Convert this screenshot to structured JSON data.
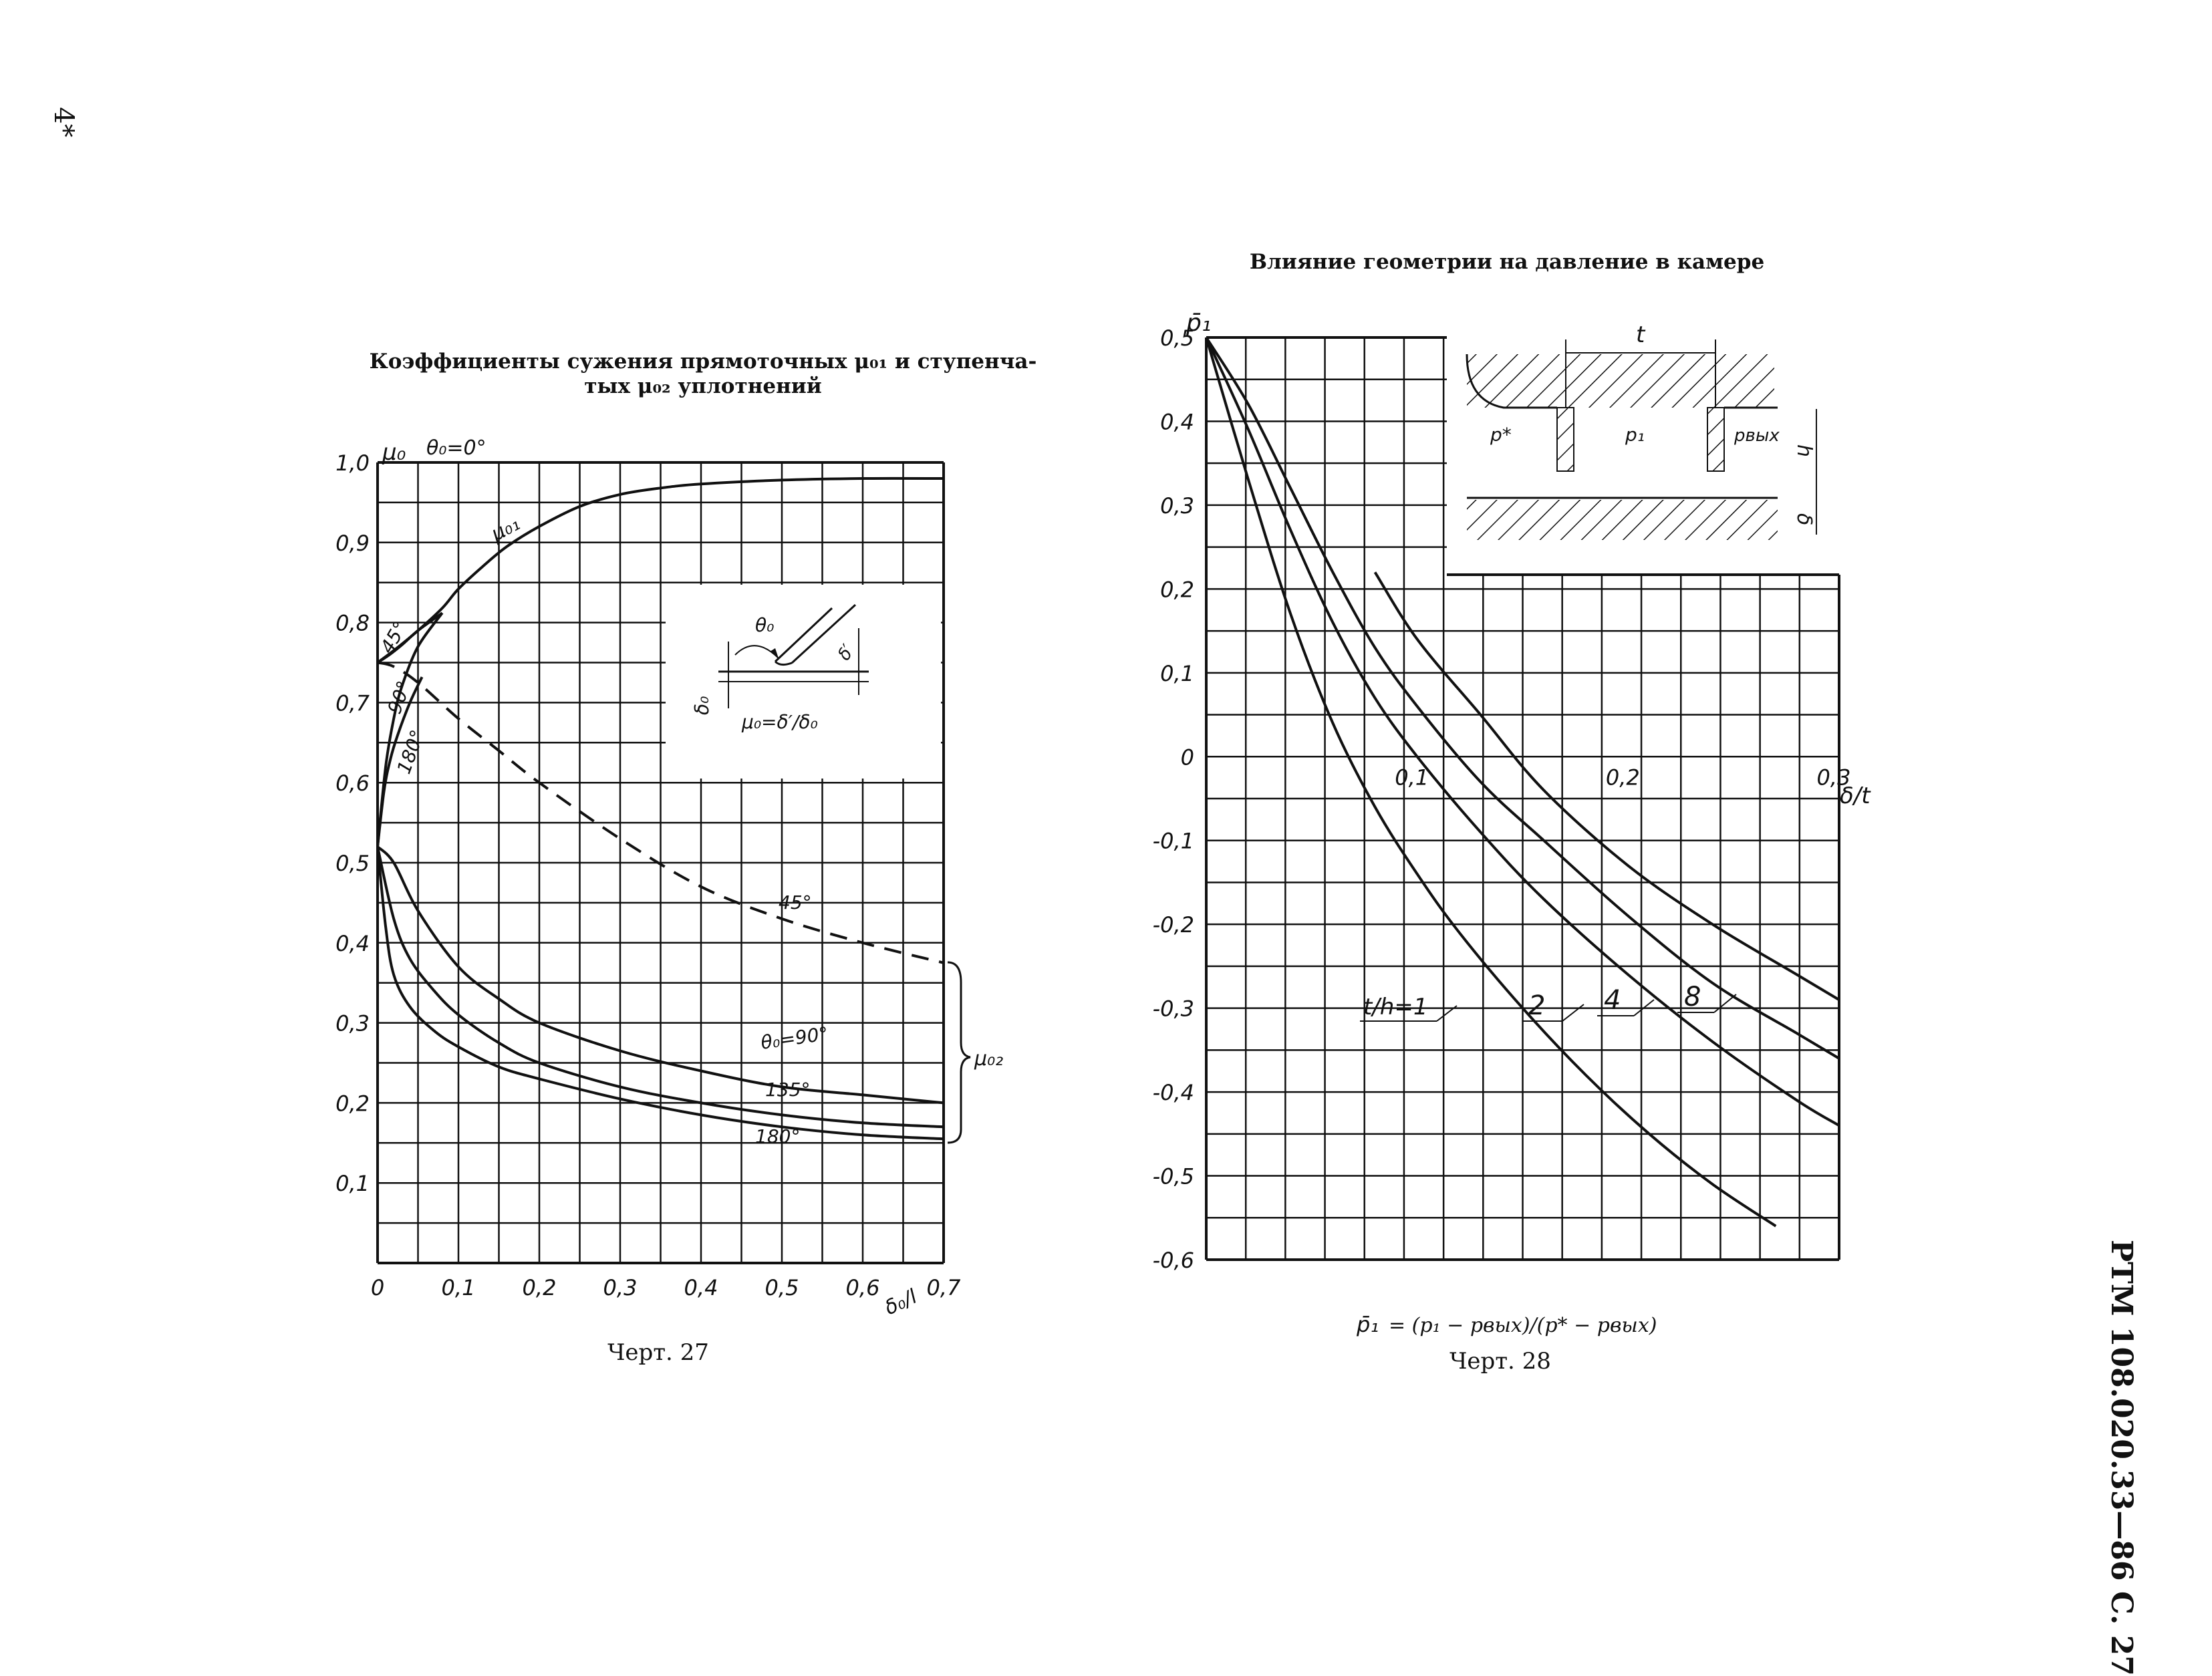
{
  "page": {
    "corner_mark": "4*",
    "side_label": "РТМ 108.020.33—86 С. 27"
  },
  "chart_data": [
    {
      "type": "line",
      "title_line1": "Коэффициенты  сужения  прямоточных  μ₀₁  и  ступенча-",
      "title_line2": "тых  μ₀₂  уплотнений",
      "ylabel": "μ₀",
      "ylabel_extra": "θ₀=0°",
      "xlabel": "δ₀/l",
      "xlim": [
        0,
        0.7
      ],
      "ylim": [
        0,
        1.0
      ],
      "x_ticks": [
        "0",
        "0,1",
        "0,2",
        "0,3",
        "0,4",
        "0,5",
        "0,6",
        "0,7"
      ],
      "y_ticks": [
        "0,1",
        "0,2",
        "0,3",
        "0,4",
        "0,5",
        "0,6",
        "0,7",
        "0,8",
        "0,9",
        "1,0"
      ],
      "grid": true,
      "series": [
        {
          "name": "μ₀₁",
          "dashed": false,
          "x": [
            0,
            0.02,
            0.05,
            0.08,
            0.1,
            0.13,
            0.16,
            0.2,
            0.25,
            0.3,
            0.35,
            0.4,
            0.5,
            0.6,
            0.7
          ],
          "y": [
            0.75,
            0.765,
            0.79,
            0.818,
            0.842,
            0.87,
            0.895,
            0.92,
            0.945,
            0.96,
            0.968,
            0.973,
            0.978,
            0.98,
            0.98
          ]
        },
        {
          "name": "45°",
          "dashed": false,
          "x": [
            0,
            0.015,
            0.03,
            0.05,
            0.08
          ],
          "y": [
            0.75,
            0.76,
            0.772,
            0.79,
            0.812
          ]
        },
        {
          "name": "90°",
          "dashed": false,
          "x": [
            0,
            0.01,
            0.02,
            0.03,
            0.05,
            0.08
          ],
          "y": [
            0.52,
            0.62,
            0.68,
            0.72,
            0.77,
            0.812
          ]
        },
        {
          "name": "180°",
          "dashed": false,
          "x": [
            0,
            0.008,
            0.016,
            0.025,
            0.04,
            0.055
          ],
          "y": [
            0.52,
            0.59,
            0.63,
            0.66,
            0.7,
            0.732
          ]
        },
        {
          "name": "45°",
          "dashed": true,
          "x": [
            0,
            0.02,
            0.05,
            0.1,
            0.15,
            0.2,
            0.3,
            0.4,
            0.5,
            0.6,
            0.7
          ],
          "y": [
            0.75,
            0.745,
            0.725,
            0.68,
            0.64,
            0.6,
            0.53,
            0.47,
            0.43,
            0.4,
            0.375
          ]
        },
        {
          "name": "θ₀=90°",
          "dashed": false,
          "x": [
            0,
            0.02,
            0.05,
            0.1,
            0.15,
            0.2,
            0.3,
            0.4,
            0.5,
            0.6,
            0.7
          ],
          "y": [
            0.52,
            0.5,
            0.44,
            0.37,
            0.33,
            0.3,
            0.265,
            0.24,
            0.22,
            0.21,
            0.2
          ]
        },
        {
          "name": "135°",
          "dashed": false,
          "x": [
            0,
            0.02,
            0.04,
            0.07,
            0.1,
            0.15,
            0.2,
            0.3,
            0.4,
            0.5,
            0.6,
            0.7
          ],
          "y": [
            0.52,
            0.43,
            0.38,
            0.34,
            0.31,
            0.275,
            0.25,
            0.22,
            0.2,
            0.185,
            0.175,
            0.17
          ]
        },
        {
          "name": "180°",
          "dashed": false,
          "x": [
            0,
            0.01,
            0.02,
            0.04,
            0.07,
            0.1,
            0.15,
            0.2,
            0.3,
            0.4,
            0.5,
            0.6,
            0.7
          ],
          "y": [
            0.52,
            0.42,
            0.36,
            0.32,
            0.29,
            0.27,
            0.245,
            0.23,
            0.205,
            0.185,
            0.17,
            0.16,
            0.155
          ]
        }
      ],
      "bracket_label": "μ₀₂",
      "inset": {
        "angle_label": "θ₀",
        "delta0_label": "δ₀",
        "delta_label": "δ′",
        "formula": "μ₀=δ′/δ₀"
      },
      "caption": "Черт. 27"
    },
    {
      "type": "line",
      "title": "Влияние геометрии на давление в камере",
      "ylabel": "p̄₁",
      "xlabel": "δ/t",
      "xlim": [
        0,
        0.3
      ],
      "ylim": [
        -0.6,
        0.5
      ],
      "x_ticks": [
        "0,1",
        "0,2",
        "0,3"
      ],
      "y_ticks": [
        "0,5",
        "0,4",
        "0,3",
        "0,2",
        "0,1",
        "0",
        "-0,1",
        "-0,2",
        "-0,3",
        "-0,4",
        "-0,5",
        "-0,6"
      ],
      "grid": true,
      "series": [
        {
          "name": "t/h=1",
          "x": [
            0,
            0.02,
            0.04,
            0.06,
            0.08,
            0.1,
            0.12,
            0.15,
            0.18,
            0.21,
            0.24,
            0.27
          ],
          "y": [
            0.5,
            0.33,
            0.17,
            0.04,
            -0.06,
            -0.14,
            -0.21,
            -0.3,
            -0.38,
            -0.45,
            -0.51,
            -0.56
          ]
        },
        {
          "name": "2",
          "x": [
            0,
            0.02,
            0.04,
            0.06,
            0.08,
            0.1,
            0.13,
            0.16,
            0.2,
            0.24,
            0.28,
            0.3
          ],
          "y": [
            0.5,
            0.39,
            0.27,
            0.16,
            0.07,
            0.0,
            -0.09,
            -0.17,
            -0.26,
            -0.34,
            -0.41,
            -0.44
          ]
        },
        {
          "name": "4",
          "x": [
            0,
            0.02,
            0.04,
            0.06,
            0.08,
            0.1,
            0.13,
            0.16,
            0.2,
            0.24,
            0.28,
            0.3
          ],
          "y": [
            0.5,
            0.42,
            0.32,
            0.22,
            0.13,
            0.06,
            -0.03,
            -0.1,
            -0.19,
            -0.27,
            -0.33,
            -0.36
          ]
        },
        {
          "name": "8",
          "x": [
            0.08,
            0.1,
            0.13,
            0.16,
            0.2,
            0.24,
            0.28,
            0.3
          ],
          "y": [
            0.22,
            0.14,
            0.05,
            -0.04,
            -0.13,
            -0.2,
            -0.26,
            -0.29
          ]
        }
      ],
      "inset": {
        "t_label": "t",
        "h_label": "h",
        "delta_label": "δ",
        "p_star": "p*",
        "p1": "p₁",
        "p_out": "pвых"
      },
      "formula_lhs": "p̄₁",
      "formula_rhs": "= (p₁ − pвых)/(p* − pвых)",
      "caption": "Черт. 28"
    }
  ]
}
